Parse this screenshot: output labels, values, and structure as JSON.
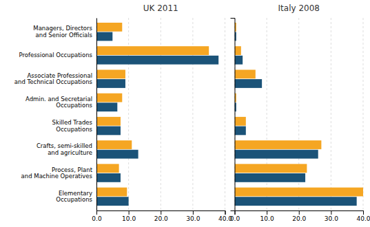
{
  "chart_data": [
    {
      "type": "bar",
      "orientation": "horizontal",
      "title": "UK 2011",
      "categories": [
        "Managers, Directors\nand Senior Officials",
        "Professional Occupations",
        "Associate Professional\nand Technical Occupations",
        "Admin. and Secretarial\nOccupations",
        "Skilled Trades\nOccupations",
        "Crafts, semi-skilled\nand agriculture",
        "Process, Plant\nand Machine Operatives",
        "Elementary\nOccupations"
      ],
      "series": [
        {
          "color": "#F5A623",
          "values": [
            8.0,
            35.0,
            9.0,
            8.0,
            7.5,
            11.0,
            7.0,
            9.5
          ]
        },
        {
          "color": "#1B5378",
          "values": [
            5.0,
            38.0,
            9.0,
            6.5,
            7.5,
            13.0,
            7.5,
            10.0
          ]
        }
      ],
      "xlim": [
        0,
        40
      ],
      "xticks": [
        {
          "value": 0,
          "label": "0.0"
        },
        {
          "value": 10,
          "label": "10.0"
        },
        {
          "value": 20,
          "label": "20.0"
        },
        {
          "value": 30,
          "label": "30.0"
        },
        {
          "value": 40,
          "label": "40.0"
        }
      ],
      "grid": true
    },
    {
      "type": "bar",
      "orientation": "horizontal",
      "title": "Italy 2008",
      "categories": [
        "Managers, Directors\nand Senior Officials",
        "Professional Occupations",
        "Associate Professional\nand Technical Occupations",
        "Admin. and Secretarial\nOccupations",
        "Skilled Trades\nOccupations",
        "Crafts, semi-skilled\nand agriculture",
        "Process, Plant\nand Machine Operatives",
        "Elementary\nOccupations"
      ],
      "series": [
        {
          "color": "#F5A623",
          "values": [
            0.5,
            2.0,
            6.5,
            0.5,
            3.5,
            27.0,
            22.5,
            40.0
          ]
        },
        {
          "color": "#1B5378",
          "values": [
            0.5,
            2.5,
            8.5,
            0.5,
            3.5,
            26.0,
            22.0,
            38.0
          ]
        }
      ],
      "xlim": [
        0,
        40
      ],
      "xticks": [
        {
          "value": 0,
          "label": "0.0"
        },
        {
          "value": 10,
          "label": "10.0"
        },
        {
          "value": 20,
          "label": "20.0"
        },
        {
          "value": 30,
          "label": "30.0"
        },
        {
          "value": 40,
          "label": "40.0"
        }
      ],
      "grid": true,
      "tick_labels": "x"
    }
  ]
}
